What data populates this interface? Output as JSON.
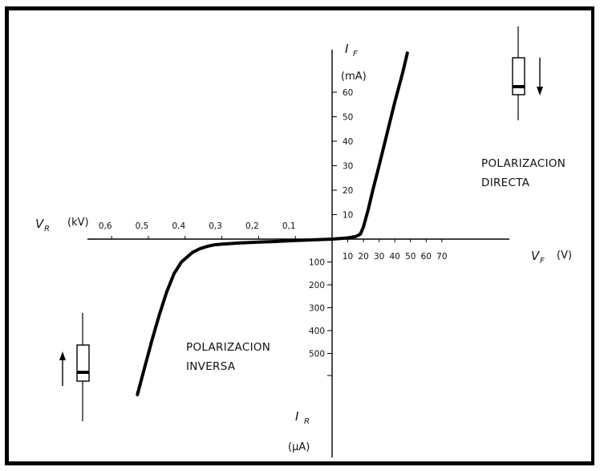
{
  "chart_data": {
    "type": "line",
    "series": [
      {
        "forward_V_vs_mA": [
          [
            0,
            0
          ],
          [
            10,
            0.5
          ],
          [
            15,
            1
          ],
          [
            18,
            2
          ],
          [
            20,
            5
          ],
          [
            23,
            12
          ],
          [
            26,
            20
          ],
          [
            30,
            30
          ],
          [
            35,
            43
          ],
          [
            40,
            56
          ],
          [
            45,
            68
          ],
          [
            48,
            76
          ]
        ],
        "reverse_kV_vs_uA": [
          [
            0,
            0
          ],
          [
            0.05,
            -3
          ],
          [
            0.1,
            -6
          ],
          [
            0.15,
            -10
          ],
          [
            0.2,
            -13
          ],
          [
            0.25,
            -17
          ],
          [
            0.3,
            -22
          ],
          [
            0.32,
            -25
          ],
          [
            0.34,
            -32
          ],
          [
            0.36,
            -42
          ],
          [
            0.38,
            -58
          ],
          [
            0.41,
            -100
          ],
          [
            0.43,
            -150
          ],
          [
            0.45,
            -230
          ],
          [
            0.47,
            -330
          ],
          [
            0.49,
            -440
          ],
          [
            0.51,
            -560
          ],
          [
            0.53,
            -680
          ]
        ]
      }
    ],
    "axes": {
      "vf": {
        "name": "V",
        "sub": "F",
        "unit": "(V)",
        "ticks": [
          10,
          20,
          30,
          40,
          50,
          60,
          70
        ]
      },
      "vr": {
        "name": "V",
        "sub": "R",
        "unit": "(kV)",
        "ticks": [
          "0,1",
          "0,2",
          "0,3",
          "0,4",
          "0,5",
          "0,6"
        ]
      },
      "if": {
        "name": "I",
        "sub": "F",
        "unit": "(mA)",
        "ticks": [
          10,
          20,
          30,
          40,
          50,
          60
        ]
      },
      "ir": {
        "name": "I",
        "sub": "R",
        "unit": "(µA)",
        "ticks": [
          100,
          200,
          300,
          400,
          500
        ]
      }
    },
    "regions": {
      "forward": [
        "POLARIZACION",
        "DIRECTA"
      ],
      "reverse": [
        "POLARIZACION",
        "INVERSA"
      ]
    },
    "grid": false,
    "legend": "none",
    "curve_color": "#000000"
  }
}
